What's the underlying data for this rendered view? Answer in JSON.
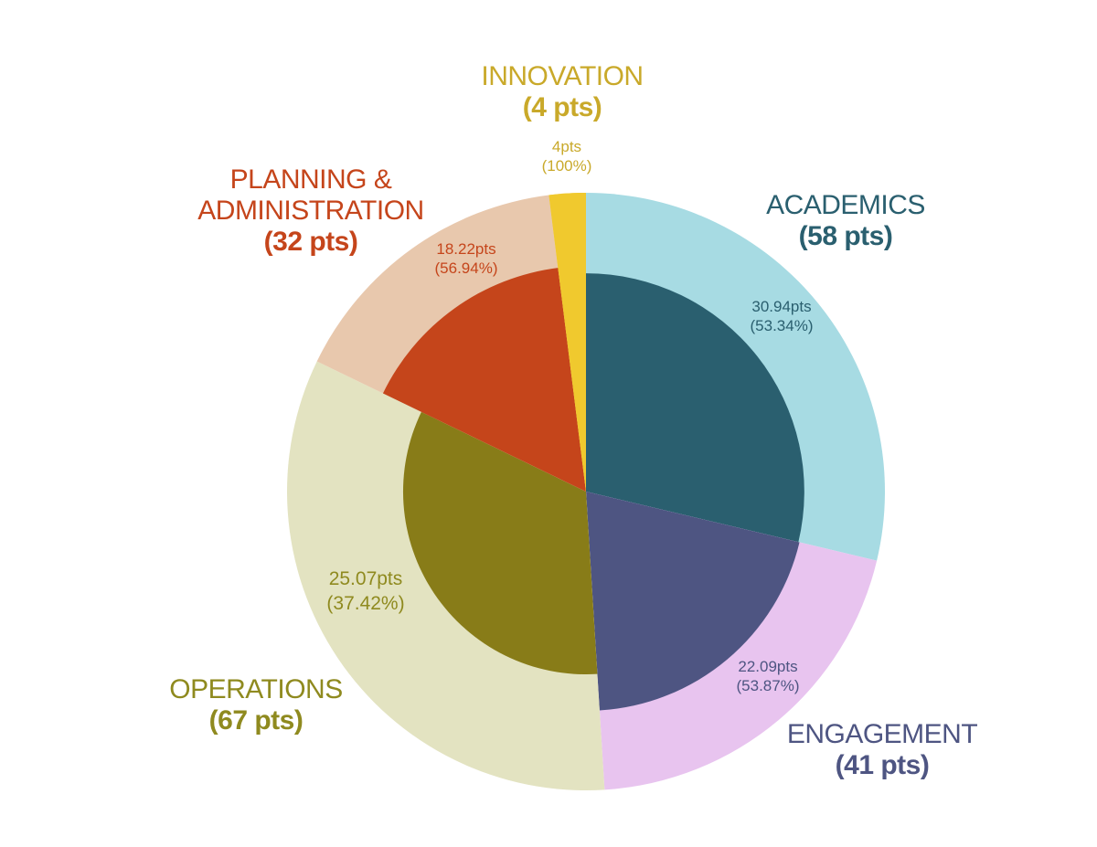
{
  "chart_data": {
    "type": "pie",
    "variant": "nested-radial",
    "categories": [
      {
        "name": "ACADEMICS",
        "total_label": "(58 pts)",
        "total": 58,
        "earned": 30.94,
        "earned_label": "30.94pts",
        "percent_label": "(53.34%)",
        "outer_color": "#a7dbe3",
        "inner_color": "#2a5f6f",
        "text_color": "#2a5f6f"
      },
      {
        "name": "ENGAGEMENT",
        "total_label": "(41 pts)",
        "total": 41,
        "earned": 22.09,
        "earned_label": "22.09pts",
        "percent_label": "(53.87%)",
        "outer_color": "#e8c4ef",
        "inner_color": "#4e5582",
        "text_color": "#4e5582"
      },
      {
        "name": "OPERATIONS",
        "total_label": "(67 pts)",
        "total": 67,
        "earned": 25.07,
        "earned_label": "25.07pts",
        "percent_label": "(37.42%)",
        "outer_color": "#e3e3c1",
        "inner_color": "#887c18",
        "text_color": "#8f8a1f"
      },
      {
        "name": "PLANNING & ADMINISTRATION",
        "name_lines": [
          "PLANNING &",
          "ADMINISTRATION"
        ],
        "total_label": "(32 pts)",
        "total": 32,
        "earned": 18.22,
        "earned_label": "18.22pts",
        "percent_label": "(56.94%)",
        "outer_color": "#e8c8ad",
        "inner_color": "#c5451b",
        "text_color": "#c5451b"
      },
      {
        "name": "INNOVATION",
        "total_label": "(4 pts)",
        "total": 4,
        "earned": 4,
        "earned_label": "4pts",
        "percent_label": "(100%)",
        "outer_color": "#f0c92e",
        "inner_color": "#f0c92e",
        "text_color": "#c9a92a"
      }
    ],
    "legend": "labels-around-chart"
  }
}
